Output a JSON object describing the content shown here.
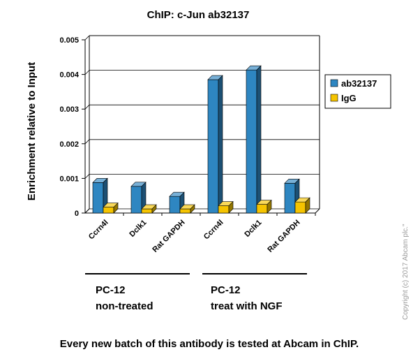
{
  "chart_data": {
    "type": "bar",
    "title": "ChIP: c-Jun  ab32137",
    "ylabel": "Enrichment relative to Input",
    "xlabel": "",
    "ylim": [
      0,
      0.005
    ],
    "yticks": [
      "0",
      "0.001",
      "0.002",
      "0.003",
      "0.004",
      "0.005"
    ],
    "categories": [
      "Ccrn4l",
      "Dclk1",
      "Rat GAPDH",
      "Ccrn4l",
      "Dclk1",
      "Rat GAPDH"
    ],
    "groups": [
      {
        "label_line1": "PC-12",
        "label_line2": "non-treated"
      },
      {
        "label_line1": "PC-12",
        "label_line2": "treat with NGF"
      }
    ],
    "series": [
      {
        "name": "ab32137",
        "color": "#2e86c1",
        "values": [
          0.00088,
          0.00077,
          0.00048,
          0.00385,
          0.00413,
          0.00086
        ]
      },
      {
        "name": "IgG",
        "color": "#f5c400",
        "values": [
          0.00017,
          0.00012,
          0.00012,
          0.00021,
          0.00025,
          0.00032
        ]
      }
    ],
    "grid": true,
    "legend_position": "right"
  },
  "footer_text": "Every new batch of this antibody is tested at Abcam in ChIP.",
  "copyright_text": "Copyright (c) 2017 Abcam plc.\""
}
